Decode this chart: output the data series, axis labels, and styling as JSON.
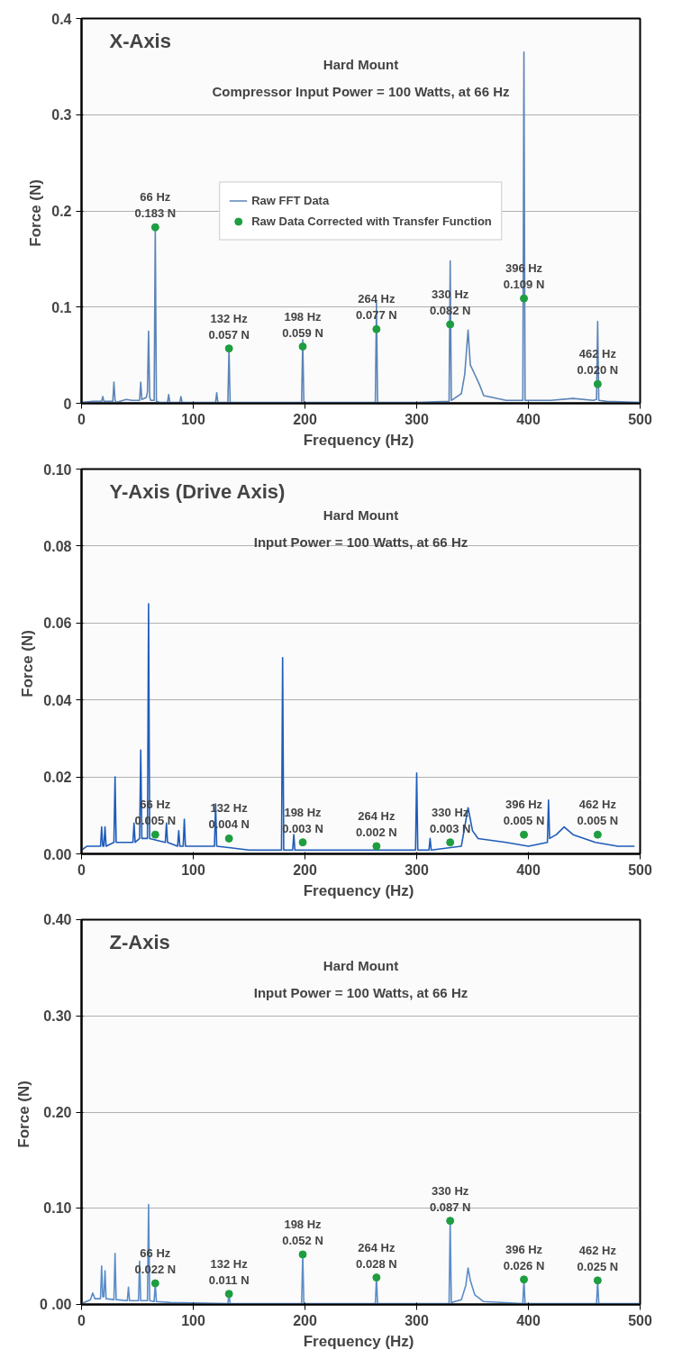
{
  "chart_data": [
    {
      "type": "line",
      "title": "X-Axis",
      "xlabel": "Frequency  (Hz)",
      "ylabel": "Force  (N)",
      "xlim": [
        0,
        500
      ],
      "xticks": [
        0,
        100,
        200,
        300,
        400,
        500
      ],
      "ylim": [
        0,
        0.4
      ],
      "yticks": [
        0,
        0.1,
        0.2,
        0.3,
        0.4
      ],
      "grid": "y",
      "legend": "center",
      "series": [
        {
          "name": "Raw FFT Data",
          "color": "#5b84b8",
          "x": [
            0,
            10,
            18,
            19,
            20,
            28,
            29,
            30,
            31,
            40,
            45,
            52,
            53,
            54,
            58,
            59,
            60,
            61,
            62,
            65,
            66,
            67,
            70,
            77,
            78,
            79,
            88,
            89,
            90,
            100,
            120,
            121,
            122,
            131,
            132,
            133,
            150,
            197,
            198,
            199,
            263,
            264,
            265,
            300,
            329,
            330,
            331,
            340,
            343,
            346,
            348,
            352,
            356,
            360,
            380,
            395,
            396,
            397,
            420,
            440,
            458,
            461,
            462,
            463,
            470,
            500
          ],
          "values": [
            0.001,
            0.002,
            0.002,
            0.007,
            0.002,
            0.002,
            0.022,
            0.003,
            0.001,
            0.004,
            0.003,
            0.003,
            0.022,
            0.004,
            0.006,
            0.012,
            0.075,
            0.006,
            0.003,
            0.003,
            0.183,
            0.002,
            0.001,
            0.001,
            0.009,
            0.001,
            0.001,
            0.007,
            0.001,
            0.001,
            0.001,
            0.011,
            0.001,
            0.001,
            0.057,
            0.001,
            0.001,
            0.001,
            0.066,
            0.001,
            0.001,
            0.105,
            0.001,
            0.001,
            0.002,
            0.148,
            0.003,
            0.01,
            0.03,
            0.076,
            0.04,
            0.03,
            0.02,
            0.008,
            0.003,
            0.003,
            0.365,
            0.003,
            0.003,
            0.005,
            0.003,
            0.004,
            0.085,
            0.003,
            0.002,
            0.001
          ]
        },
        {
          "name": "Raw Data Corrected with Transfer Function",
          "type": "scatter",
          "marker": "circle",
          "color": "#1e9e40",
          "x": [
            66,
            132,
            198,
            264,
            330,
            396,
            462
          ],
          "values": [
            0.183,
            0.057,
            0.059,
            0.077,
            0.082,
            0.109,
            0.02
          ]
        }
      ],
      "annotations": [
        "Hard Mount",
        "Compressor Input Power = 100 Watts, at 66 Hz",
        {
          "text": "66 Hz\n0.183 N",
          "x": 66,
          "y": 0.183
        },
        {
          "text": "132 Hz\n0.057 N",
          "x": 132,
          "y": 0.057
        },
        {
          "text": "198 Hz\n0.059 N",
          "x": 198,
          "y": 0.059
        },
        {
          "text": "264 Hz\n0.077 N",
          "x": 264,
          "y": 0.077
        },
        {
          "text": "330 Hz\n0.082 N",
          "x": 330,
          "y": 0.082
        },
        {
          "text": "396 Hz\n0.109 N",
          "x": 396,
          "y": 0.109
        },
        {
          "text": "462 Hz\n0.020 N",
          "x": 462,
          "y": 0.02
        }
      ]
    },
    {
      "type": "line",
      "title": "Y-Axis (Drive Axis)",
      "xlabel": "Frequency  (Hz)",
      "ylabel": "Force  (N)",
      "xlim": [
        0,
        500
      ],
      "xticks": [
        0,
        100,
        200,
        300,
        400,
        500
      ],
      "ylim": [
        0,
        0.1
      ],
      "yticks": [
        {
          "value": 0,
          "label": "0.00"
        },
        {
          "value": 0.02,
          "label": "0.02"
        },
        {
          "value": 0.04,
          "label": "0.04"
        },
        {
          "value": 0.06,
          "label": "0.06"
        },
        {
          "value": 0.08,
          "label": "0.08"
        },
        {
          "value": 0.1,
          "label": "0.10"
        }
      ],
      "grid": "y",
      "series": [
        {
          "color": "#1f5cb8",
          "x": [
            0,
            5,
            17,
            18,
            19,
            20,
            21,
            22,
            29,
            30,
            31,
            46,
            47,
            48,
            52,
            53,
            54,
            59,
            60,
            61,
            75,
            76,
            77,
            86,
            87,
            88,
            91,
            92,
            93,
            100,
            119,
            120,
            121,
            150,
            179,
            180,
            181,
            189,
            190,
            191,
            250,
            299,
            300,
            301,
            311,
            312,
            313,
            340,
            346,
            350,
            355,
            380,
            400,
            417,
            418,
            419,
            425,
            432,
            440,
            460,
            480,
            495
          ],
          "values": [
            0.001,
            0.002,
            0.002,
            0.007,
            0.002,
            0.002,
            0.007,
            0.002,
            0.003,
            0.02,
            0.003,
            0.003,
            0.008,
            0.003,
            0.004,
            0.027,
            0.004,
            0.004,
            0.065,
            0.004,
            0.003,
            0.008,
            0.003,
            0.002,
            0.006,
            0.002,
            0.002,
            0.009,
            0.002,
            0.002,
            0.002,
            0.013,
            0.002,
            0.001,
            0.001,
            0.051,
            0.001,
            0.001,
            0.005,
            0.001,
            0.001,
            0.001,
            0.021,
            0.001,
            0.001,
            0.004,
            0.001,
            0.002,
            0.012,
            0.006,
            0.004,
            0.003,
            0.002,
            0.003,
            0.014,
            0.004,
            0.005,
            0.007,
            0.005,
            0.003,
            0.002,
            0.002
          ]
        },
        {
          "type": "scatter",
          "marker": "circle",
          "color": "#1e9e40",
          "x": [
            66,
            132,
            198,
            264,
            330,
            396,
            462
          ],
          "values": [
            0.005,
            0.004,
            0.003,
            0.002,
            0.003,
            0.005,
            0.005
          ]
        }
      ],
      "annotations": [
        "Hard Mount",
        "Input Power = 100 Watts, at 66 Hz",
        {
          "text": "66 Hz\n0.005 N",
          "x": 66,
          "y": 0.005
        },
        {
          "text": "132 Hz\n0.004 N",
          "x": 132,
          "y": 0.004
        },
        {
          "text": "198 Hz\n0.003 N",
          "x": 198,
          "y": 0.003
        },
        {
          "text": "264 Hz\n0.002 N",
          "x": 264,
          "y": 0.002
        },
        {
          "text": "330 Hz\n0.003 N",
          "x": 330,
          "y": 0.003
        },
        {
          "text": "396 Hz\n0.005 N",
          "x": 396,
          "y": 0.005
        },
        {
          "text": "462 Hz\n0.005 N",
          "x": 462,
          "y": 0.005
        }
      ]
    },
    {
      "type": "line",
      "title": "Z-Axis",
      "xlabel": "Frequency  (Hz)",
      "ylabel": "Force  (N)",
      "xlim": [
        0,
        500
      ],
      "xticks": [
        0,
        100,
        200,
        300,
        400,
        500
      ],
      "ylim": [
        0,
        0.4
      ],
      "yticks": [
        {
          "value": 0,
          "label": "0 .00"
        },
        {
          "value": 0.1,
          "label": "0.10"
        },
        {
          "value": 0.2,
          "label": "0.20"
        },
        {
          "value": 0.3,
          "label": "0.30"
        },
        {
          "value": 0.4,
          "label": "0.40"
        }
      ],
      "grid": "y",
      "series": [
        {
          "color": "#5b8cc8",
          "x": [
            0,
            8,
            10,
            12,
            17,
            18,
            19,
            20,
            21,
            22,
            29,
            30,
            31,
            41,
            42,
            43,
            51,
            52,
            53,
            59,
            60,
            61,
            65,
            66,
            67,
            80,
            131,
            132,
            133,
            197,
            198,
            199,
            263,
            264,
            265,
            300,
            329,
            330,
            331,
            340,
            344,
            346,
            348,
            352,
            360,
            395,
            396,
            397,
            461,
            462,
            463,
            500
          ],
          "values": [
            0.001,
            0.005,
            0.012,
            0.006,
            0.006,
            0.04,
            0.008,
            0.008,
            0.035,
            0.006,
            0.005,
            0.053,
            0.005,
            0.004,
            0.018,
            0.004,
            0.004,
            0.045,
            0.004,
            0.004,
            0.104,
            0.004,
            0.003,
            0.022,
            0.003,
            0.002,
            0.001,
            0.011,
            0.001,
            0.001,
            0.052,
            0.001,
            0.001,
            0.028,
            0.001,
            0.001,
            0.001,
            0.087,
            0.002,
            0.005,
            0.02,
            0.038,
            0.025,
            0.01,
            0.003,
            0.001,
            0.026,
            0.001,
            0.001,
            0.025,
            0.001,
            0.001
          ]
        },
        {
          "type": "scatter",
          "marker": "circle",
          "color": "#1e9e40",
          "x": [
            66,
            132,
            198,
            264,
            330,
            396,
            462
          ],
          "values": [
            0.022,
            0.011,
            0.052,
            0.028,
            0.087,
            0.026,
            0.025
          ]
        }
      ],
      "annotations": [
        "Hard Mount",
        "Input Power = 100 Watts, at 66 Hz",
        {
          "text": "66 Hz\n0.022 N",
          "x": 66,
          "y": 0.022
        },
        {
          "text": "132 Hz\n0.011 N",
          "x": 132,
          "y": 0.011
        },
        {
          "text": "198 Hz\n0.052 N",
          "x": 198,
          "y": 0.052
        },
        {
          "text": "264 Hz\n0.028 N",
          "x": 264,
          "y": 0.028
        },
        {
          "text": "330 Hz\n0.087 N",
          "x": 330,
          "y": 0.087
        },
        {
          "text": "396 Hz\n0.026 N",
          "x": 396,
          "y": 0.026
        },
        {
          "text": "462 Hz\n0.025 N",
          "x": 462,
          "y": 0.025
        }
      ]
    }
  ]
}
